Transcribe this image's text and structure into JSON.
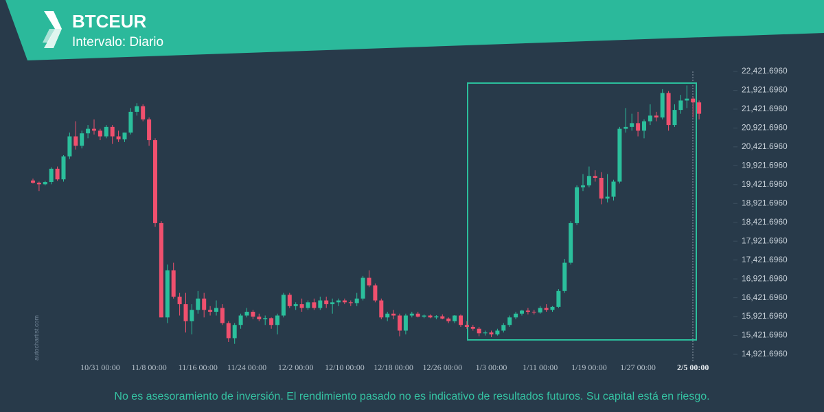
{
  "header": {
    "symbol": "BTCEUR",
    "interval": "Intervalo: Diario"
  },
  "watermark": "autochartist.com",
  "footer": "No es asesoramiento de inversión. El rendimiento pasado no es indicativo de resultados futuros. Su capital está en riesgo.",
  "chart_data": {
    "type": "candlestick",
    "up_color": "#2bbf9c",
    "down_color": "#f0506e",
    "categories": [
      null,
      null,
      null,
      null,
      null,
      null,
      null,
      null,
      null,
      null,
      null,
      "10/31 00:00",
      null,
      null,
      null,
      null,
      null,
      null,
      null,
      "11/8 00:00",
      null,
      null,
      null,
      null,
      null,
      null,
      null,
      "11/16 00:00",
      null,
      null,
      null,
      null,
      null,
      null,
      null,
      "11/24 00:00",
      null,
      null,
      null,
      null,
      null,
      null,
      null,
      "12/2 00:00",
      null,
      null,
      null,
      null,
      null,
      null,
      null,
      "12/10 00:00",
      null,
      null,
      null,
      null,
      null,
      null,
      null,
      "12/18 00:00",
      null,
      null,
      null,
      null,
      null,
      null,
      null,
      "12/26 00:00",
      null,
      null,
      null,
      null,
      null,
      null,
      null,
      "1/3 00:00",
      null,
      null,
      null,
      null,
      null,
      null,
      null,
      "1/11 00:00",
      null,
      null,
      null,
      null,
      null,
      null,
      null,
      "1/19 00:00",
      null,
      null,
      null,
      null,
      null,
      null,
      null,
      "1/27 00:00",
      null,
      null,
      null,
      null,
      null,
      null,
      null,
      null,
      "2/5 00:00",
      null
    ],
    "open": [
      19530,
      19470,
      19430,
      19490,
      19840,
      19560,
      20170,
      20700,
      20450,
      20780,
      20900,
      20850,
      20700,
      20950,
      20700,
      20620,
      20800,
      21350,
      21500,
      21150,
      20600,
      18400,
      15900,
      17150,
      16450,
      16250,
      15800,
      16100,
      16400,
      16100,
      16050,
      16150,
      15750,
      15350,
      15700,
      15950,
      16050,
      15920,
      15850,
      15880,
      15700,
      15950,
      16500,
      16200,
      16250,
      16150,
      16300,
      16150,
      16350,
      16250,
      16300,
      16350,
      16300,
      16280,
      16400,
      16950,
      16750,
      16350,
      15900,
      16000,
      15950,
      15550,
      15950,
      16000,
      15920,
      15950,
      15900,
      15930,
      15870,
      15800,
      15950,
      15700,
      15650,
      15600,
      15480,
      15500,
      15450,
      15550,
      15700,
      15900,
      16000,
      16080,
      16050,
      16030,
      16150,
      16100,
      16180,
      16600,
      17350,
      18400,
      19350,
      19400,
      19650,
      19600,
      19050,
      19100,
      19500,
      20900,
      20950,
      21050,
      20850,
      21100,
      21250,
      21200,
      21850,
      21000,
      21400,
      21650,
      21700,
      21600
    ],
    "high": [
      19580,
      19500,
      19520,
      19880,
      19900,
      20200,
      20800,
      21100,
      20850,
      21000,
      21150,
      20900,
      21000,
      21000,
      20850,
      20800,
      21450,
      21580,
      21550,
      21200,
      20650,
      18450,
      17300,
      17350,
      16550,
      16550,
      16250,
      16600,
      16550,
      16200,
      16350,
      16250,
      15800,
      15750,
      16000,
      16150,
      16100,
      16000,
      15950,
      15900,
      16000,
      16550,
      16550,
      16300,
      16400,
      16350,
      16400,
      16450,
      16450,
      16400,
      16400,
      16400,
      16350,
      16550,
      17000,
      17150,
      16800,
      16400,
      16050,
      16100,
      16000,
      16000,
      16050,
      16050,
      15980,
      15980,
      15960,
      15980,
      15900,
      15960,
      15980,
      15800,
      15700,
      15650,
      15550,
      15550,
      15600,
      15750,
      15950,
      16050,
      16100,
      16150,
      16100,
      16200,
      16250,
      16200,
      16650,
      17450,
      18450,
      19400,
      19700,
      19900,
      19800,
      19750,
      19700,
      19550,
      20950,
      21450,
      21300,
      21350,
      21150,
      21550,
      21350,
      21950,
      21900,
      21550,
      21800,
      22050,
      21750,
      21650
    ],
    "low": [
      19450,
      19250,
      19400,
      19430,
      19520,
      19500,
      20100,
      20350,
      20380,
      20650,
      20750,
      20600,
      20650,
      20500,
      20550,
      20550,
      20750,
      21250,
      21100,
      20450,
      18300,
      15900,
      15750,
      16400,
      15950,
      15500,
      15450,
      16000,
      15900,
      15950,
      15950,
      15700,
      15250,
      15200,
      15600,
      15900,
      15850,
      15800,
      15700,
      15600,
      15450,
      15900,
      16150,
      16100,
      16050,
      16100,
      16100,
      16100,
      16150,
      16000,
      16200,
      16250,
      16200,
      16200,
      16350,
      16700,
      16300,
      15850,
      15800,
      15850,
      15400,
      15450,
      15900,
      15900,
      15880,
      15880,
      15850,
      15850,
      15750,
      15750,
      15650,
      15600,
      15550,
      15400,
      15420,
      15380,
      15420,
      15500,
      15650,
      15850,
      15950,
      15980,
      15980,
      16000,
      16050,
      16050,
      16150,
      16550,
      17300,
      18350,
      19250,
      19350,
      19500,
      18900,
      18950,
      19000,
      19450,
      20800,
      20850,
      20700,
      20650,
      21000,
      21100,
      21150,
      20850,
      20950,
      21300,
      21450,
      21200,
      21150
    ],
    "close": [
      19470,
      19430,
      19490,
      19840,
      19560,
      20170,
      20700,
      20450,
      20780,
      20900,
      20850,
      20700,
      20950,
      20700,
      20620,
      20800,
      21350,
      21500,
      21150,
      20600,
      18400,
      15900,
      17150,
      16450,
      16250,
      15800,
      16100,
      16400,
      16100,
      16050,
      16150,
      15750,
      15350,
      15700,
      15950,
      16050,
      15920,
      15850,
      15880,
      15700,
      15950,
      16500,
      16200,
      16250,
      16150,
      16300,
      16150,
      16350,
      16250,
      16300,
      16350,
      16300,
      16280,
      16400,
      16950,
      16750,
      16350,
      15900,
      16000,
      15950,
      15550,
      15950,
      16000,
      15920,
      15950,
      15900,
      15930,
      15870,
      15800,
      15950,
      15700,
      15650,
      15600,
      15480,
      15500,
      15450,
      15550,
      15700,
      15900,
      16000,
      16080,
      16050,
      16030,
      16150,
      16100,
      16180,
      16600,
      17350,
      18400,
      19350,
      19400,
      19650,
      19600,
      19050,
      19100,
      19500,
      20900,
      20950,
      21050,
      20850,
      21100,
      21250,
      21200,
      21850,
      21000,
      21400,
      21650,
      21700,
      21600,
      21300
    ],
    "ylim": [
      14921.696,
      22421.696
    ],
    "yticks": [
      {
        "value": 22421.696,
        "label": "22,421.6960"
      },
      {
        "value": 21921.696,
        "label": "21,921.6960"
      },
      {
        "value": 21421.696,
        "label": "21,421.6960"
      },
      {
        "value": 20921.696,
        "label": "20,921.6960"
      },
      {
        "value": 20421.696,
        "label": "20,421.6960"
      },
      {
        "value": 19921.696,
        "label": "19,921.6960"
      },
      {
        "value": 19421.696,
        "label": "19,421.6960"
      },
      {
        "value": 18921.696,
        "label": "18,921.6960"
      },
      {
        "value": 18421.696,
        "label": "18,421.6960"
      },
      {
        "value": 17921.696,
        "label": "17,921.6960"
      },
      {
        "value": 17421.696,
        "label": "17,421.6960"
      },
      {
        "value": 16921.696,
        "label": "16,921.6960"
      },
      {
        "value": 16421.696,
        "label": "16,421.6960"
      },
      {
        "value": 15921.696,
        "label": "15,921.6960"
      },
      {
        "value": 15421.696,
        "label": "15,421.6960"
      },
      {
        "value": 14921.696,
        "label": "14,921.6960"
      }
    ]
  }
}
